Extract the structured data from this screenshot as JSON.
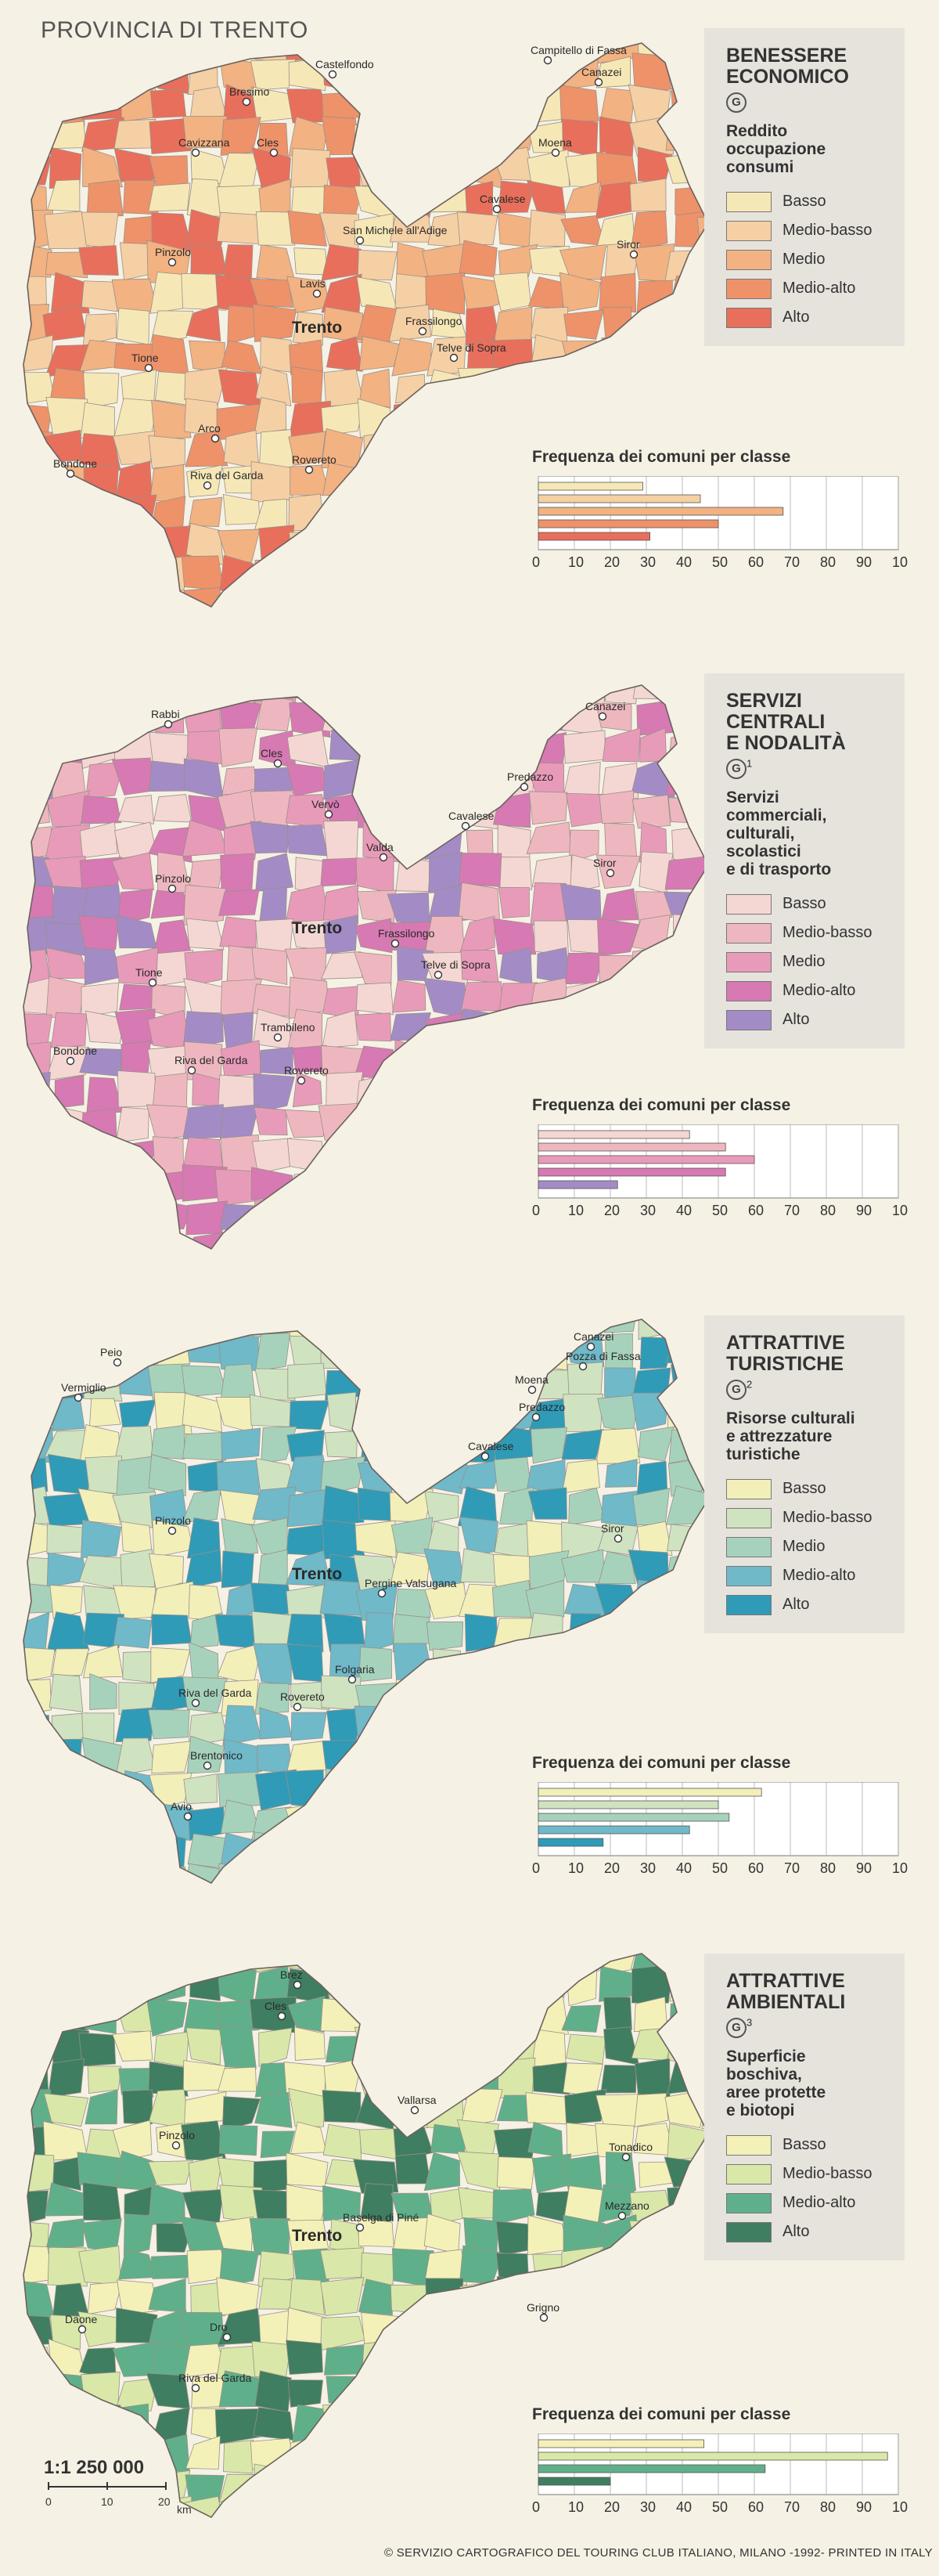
{
  "title": "PROVINCIA DI TRENTO",
  "scale": {
    "ratio": "1:1 250 000",
    "ticks": [
      "0",
      "10",
      "20"
    ],
    "unit": "km"
  },
  "copyright": "© SERVIZIO CARTOGRAFICO DEL TOURING CLUB ITALIANO, MILANO -1992- PRINTED IN ITALY",
  "panels": [
    {
      "title_lines": [
        "BENESSERE",
        "ECONOMICO"
      ],
      "g_mark": "G",
      "g_sup": "",
      "subtitle_lines": [
        "Reddito",
        "occupazione",
        "consumi"
      ],
      "legend": [
        {
          "label": "Basso",
          "color": "#f6e8b6"
        },
        {
          "label": "Medio-basso",
          "color": "#f5d0a4"
        },
        {
          "label": "Medio",
          "color": "#f2b281"
        },
        {
          "label": "Medio-alto",
          "color": "#ee9269"
        },
        {
          "label": "Alto",
          "color": "#e86f5c"
        }
      ],
      "places": [
        {
          "name": "Campitello di Fassa"
        },
        {
          "name": "Canazei"
        },
        {
          "name": "Castelfondo"
        },
        {
          "name": "Bresimo"
        },
        {
          "name": "Cavizzana"
        },
        {
          "name": "Cles"
        },
        {
          "name": "Moena"
        },
        {
          "name": "Cavalese"
        },
        {
          "name": "San Michele all'Adige"
        },
        {
          "name": "Siror"
        },
        {
          "name": "Pinzolo"
        },
        {
          "name": "Lavis"
        },
        {
          "name": "Trento"
        },
        {
          "name": "Frassilongo"
        },
        {
          "name": "Telve di Sopra"
        },
        {
          "name": "Tione"
        },
        {
          "name": "Arco"
        },
        {
          "name": "Bondone"
        },
        {
          "name": "Riva del Garda"
        },
        {
          "name": "Rovereto"
        }
      ],
      "freq": {
        "title": "Frequenza dei comuni per classe",
        "xticks": [
          "0",
          "10",
          "20",
          "30",
          "40",
          "50",
          "60",
          "70",
          "80",
          "90",
          "100"
        ],
        "values": [
          29,
          45,
          68,
          50,
          31
        ]
      }
    },
    {
      "title_lines": [
        "SERVIZI",
        "CENTRALI",
        "E NODALITÀ"
      ],
      "g_mark": "G",
      "g_sup": "1",
      "subtitle_lines": [
        "Servizi",
        "commerciali,",
        "culturali,",
        "scolastici",
        "e di trasporto"
      ],
      "legend": [
        {
          "label": "Basso",
          "color": "#f4d7d3"
        },
        {
          "label": "Medio-basso",
          "color": "#eeb7bf"
        },
        {
          "label": "Medio",
          "color": "#e89bb9"
        },
        {
          "label": "Medio-alto",
          "color": "#d779b3"
        },
        {
          "label": "Alto",
          "color": "#a38cc5"
        }
      ],
      "places": [
        {
          "name": "Canazei"
        },
        {
          "name": "Rabbi"
        },
        {
          "name": "Cles"
        },
        {
          "name": "Predazzo"
        },
        {
          "name": "Vervò"
        },
        {
          "name": "Cavalese"
        },
        {
          "name": "Valda"
        },
        {
          "name": "Siror"
        },
        {
          "name": "Pinzolo"
        },
        {
          "name": "Trento"
        },
        {
          "name": "Frassilongo"
        },
        {
          "name": "Telve di Sopra"
        },
        {
          "name": "Tione"
        },
        {
          "name": "Trambileno"
        },
        {
          "name": "Bondone"
        },
        {
          "name": "Riva del Garda"
        },
        {
          "name": "Rovereto"
        }
      ],
      "freq": {
        "title": "Frequenza dei comuni per classe",
        "xticks": [
          "0",
          "10",
          "20",
          "30",
          "40",
          "50",
          "60",
          "70",
          "80",
          "90",
          "100"
        ],
        "values": [
          42,
          52,
          60,
          52,
          22
        ]
      }
    },
    {
      "title_lines": [
        "ATTRATTIVE",
        "TURISTICHE"
      ],
      "g_mark": "G",
      "g_sup": "2",
      "subtitle_lines": [
        "Risorse culturali",
        "e attrezzature",
        "turistiche"
      ],
      "legend": [
        {
          "label": "Basso",
          "color": "#f2efb9"
        },
        {
          "label": "Medio-basso",
          "color": "#cfe3c0"
        },
        {
          "label": "Medio",
          "color": "#a6d2bb"
        },
        {
          "label": "Medio-alto",
          "color": "#6fb9c9"
        },
        {
          "label": "Alto",
          "color": "#2f9bb7"
        }
      ],
      "places": [
        {
          "name": "Canazei"
        },
        {
          "name": "Pozza di Fassa"
        },
        {
          "name": "Peio"
        },
        {
          "name": "Moena"
        },
        {
          "name": "Vermiglio"
        },
        {
          "name": "Predazzo"
        },
        {
          "name": "Cavalese"
        },
        {
          "name": "Pinzolo"
        },
        {
          "name": "Siror"
        },
        {
          "name": "Trento"
        },
        {
          "name": "Pergine Valsugana"
        },
        {
          "name": "Folgaria"
        },
        {
          "name": "Riva del Garda"
        },
        {
          "name": "Rovereto"
        },
        {
          "name": "Brentonico"
        },
        {
          "name": "Avio"
        }
      ],
      "freq": {
        "title": "Frequenza dei comuni per classe",
        "xticks": [
          "0",
          "10",
          "20",
          "30",
          "40",
          "50",
          "60",
          "70",
          "80",
          "90",
          "100"
        ],
        "values": [
          62,
          50,
          53,
          42,
          18
        ]
      }
    },
    {
      "title_lines": [
        "ATTRATTIVE",
        "AMBIENTALI"
      ],
      "g_mark": "G",
      "g_sup": "3",
      "subtitle_lines": [
        "Superficie",
        "boschiva,",
        "aree protette",
        "e biotopi"
      ],
      "legend": [
        {
          "label": "Basso",
          "color": "#f4f1b8"
        },
        {
          "label": "Medio-basso",
          "color": "#d9e8a8"
        },
        {
          "label": "Medio-alto",
          "color": "#5fb08a"
        },
        {
          "label": "Alto",
          "color": "#3f7e60"
        }
      ],
      "places": [
        {
          "name": "Brez"
        },
        {
          "name": "Cles"
        },
        {
          "name": "Vallarsa"
        },
        {
          "name": "Pinzolo"
        },
        {
          "name": "Tonadico"
        },
        {
          "name": "Mezzano"
        },
        {
          "name": "Baselga di Piné"
        },
        {
          "name": "Trento"
        },
        {
          "name": "Daone"
        },
        {
          "name": "Grigno"
        },
        {
          "name": "Dro"
        },
        {
          "name": "Riva del Garda"
        }
      ],
      "freq": {
        "title": "Frequenza dei comuni per classe",
        "xticks": [
          "0",
          "10",
          "20",
          "30",
          "40",
          "50",
          "60",
          "70",
          "80",
          "90",
          "100"
        ],
        "values": [
          46,
          97,
          63,
          20
        ]
      }
    }
  ]
}
